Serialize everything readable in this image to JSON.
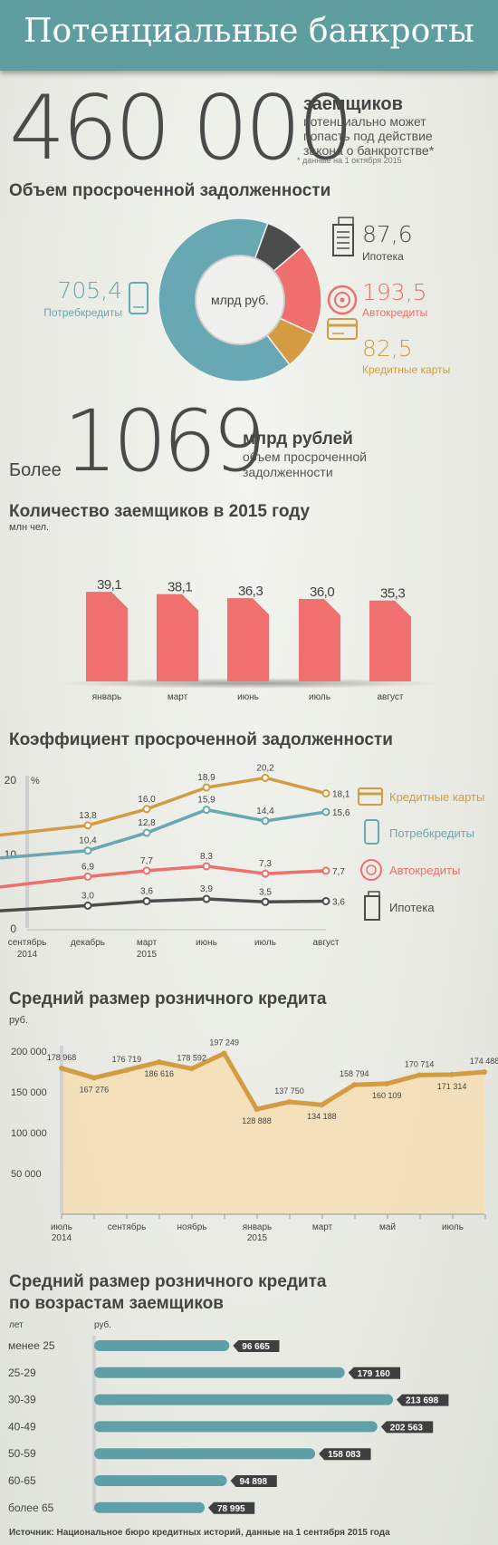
{
  "header": {
    "title": "Потенциальные банкроты"
  },
  "hero": {
    "number": "460 000",
    "word": "заемщиков",
    "desc_lines": [
      "потенциально может",
      "попасть под действие",
      "закона о банкротстве*"
    ],
    "footnote": "* данные на 1 октября 2015"
  },
  "debt": {
    "title": "Объем просроченной задолженности",
    "center_label": "млрд руб.",
    "consumer_value": "705,4",
    "consumer_label": "Потребкредиты",
    "mortgage_value": "87,6",
    "mortgage_label": "Ипотека",
    "auto_value": "193,5",
    "auto_label": "Автокредиты",
    "cards_value": "82,5",
    "cards_label": "Кредитные карты",
    "total_prefix": "Более",
    "total_number": "1069",
    "total_unit": "млрд рублей",
    "total_desc_lines": [
      "объем просроченной",
      "задолженности"
    ]
  },
  "borrowers": {
    "title": "Количество заемщиков в 2015 году",
    "unit": "млн чел."
  },
  "ratio": {
    "title": "Коэффициент просроченной задолженности"
  },
  "avg": {
    "title": "Средний размер розничного кредита",
    "unit": "руб."
  },
  "age": {
    "title_line1": "Средний размер розничного кредита",
    "title_line2": "по возрастам заемщиков",
    "col_years": "лет",
    "col_rub": "руб."
  },
  "source": "Источник: Национальное бюро кредитных историй,  данные на 1 сентября 2015 года",
  "colors": {
    "teal": "#68a8b2",
    "dark": "#4c4c4c",
    "red": "#ee6f6c",
    "gold": "#d39c42",
    "bar_red": "#f07070",
    "age_bar": "#5fa0a8"
  },
  "chart_data": [
    {
      "type": "pie",
      "title": "Объем просроченной задолженности",
      "unit": "млрд руб.",
      "labels": [
        "Потребкредиты",
        "Ипотека",
        "Автокредиты",
        "Кредитные карты"
      ],
      "values": [
        705.4,
        87.6,
        193.5,
        82.5
      ],
      "value_texts": [
        "705,4",
        "87,6",
        "193,5",
        "82,5"
      ],
      "colors": [
        "#68a8b2",
        "#4c4c4c",
        "#ee6f6c",
        "#d39c42"
      ]
    },
    {
      "type": "bar",
      "title": "Количество заемщиков в 2015 году",
      "ylabel": "млн чел.",
      "categories": [
        "январь",
        "март",
        "июнь",
        "июль",
        "август"
      ],
      "values": [
        39.1,
        38.1,
        36.3,
        36.0,
        35.3
      ],
      "value_texts": [
        "39,1",
        "38,1",
        "36,3",
        "36,0",
        "35,3"
      ],
      "ylim": [
        0,
        45
      ]
    },
    {
      "type": "line",
      "title": "Коэффициент просроченной задолженности",
      "ylabel": "%",
      "ylim": [
        0,
        20
      ],
      "yticks": [
        "0",
        "10",
        "20"
      ],
      "x_labels": [
        [
          "сентябрь",
          "2014"
        ],
        [
          "декабрь"
        ],
        [
          "март",
          "2015"
        ],
        [
          "июнь"
        ],
        [
          "июль"
        ],
        [
          "август"
        ]
      ],
      "series": [
        {
          "name": "Кредитные карты",
          "color": "#d39c42",
          "values": [
            12.5,
            13.8,
            16.0,
            18.9,
            20.2,
            18.1
          ],
          "labels": [
            "",
            "13,8",
            "16,0",
            "18,9",
            "20,2",
            "18,1"
          ]
        },
        {
          "name": "Потребкредиты",
          "color": "#68a8b2",
          "values": [
            9.4,
            10.4,
            12.8,
            15.9,
            14.4,
            15.6
          ],
          "labels": [
            "",
            "10,4",
            "12,8",
            "15,9",
            "14,4",
            "15,6"
          ]
        },
        {
          "name": "Автокредиты",
          "color": "#ee6f6c",
          "values": [
            5.5,
            6.9,
            7.7,
            8.3,
            7.3,
            7.7
          ],
          "labels": [
            "",
            "6,9",
            "7,7",
            "8,3",
            "7,3",
            "7,7"
          ]
        },
        {
          "name": "Ипотека",
          "color": "#4c4c4c",
          "values": [
            2.3,
            3.0,
            3.6,
            3.9,
            3.5,
            3.6
          ],
          "labels": [
            "",
            "3,0",
            "3,6",
            "3,9",
            "3,5",
            "3,6"
          ]
        }
      ]
    },
    {
      "type": "area",
      "title": "Средний размер розничного кредита",
      "ylabel": "руб.",
      "ylim": [
        0,
        200000
      ],
      "yticks": [
        "50 000",
        "100 000",
        "150 000",
        "200 000"
      ],
      "x_labels": [
        [
          "июль",
          "2014"
        ],
        [
          "сентябрь"
        ],
        [
          "ноябрь"
        ],
        [
          "январь",
          "2015"
        ],
        [
          "март"
        ],
        [
          "май"
        ],
        [
          "июль"
        ]
      ],
      "values": [
        178968,
        167276,
        176719,
        186616,
        178592,
        197249,
        128888,
        137750,
        134188,
        158794,
        160109,
        170714,
        171314,
        174488
      ],
      "labels": [
        "178 968",
        "167 276",
        "176 719",
        "186 616",
        "178 592",
        "197 249",
        "128 888",
        "137 750",
        "134 188",
        "158 794",
        "160 109",
        "170 714",
        "171 314",
        "174 488"
      ]
    },
    {
      "type": "bar",
      "orientation": "horizontal",
      "title": "Средний размер розничного кредита по возрастам заемщиков",
      "ylabel": "лет",
      "xlabel": "руб.",
      "categories": [
        "менее 25",
        "25-29",
        "30-39",
        "40-49",
        "50-59",
        "60-65",
        "более 65"
      ],
      "values": [
        96665,
        179160,
        213698,
        202563,
        158083,
        94898,
        78995
      ],
      "value_texts": [
        "96 665",
        "179 160",
        "213 698",
        "202 563",
        "158 083",
        "94 898",
        "78 995"
      ]
    }
  ]
}
